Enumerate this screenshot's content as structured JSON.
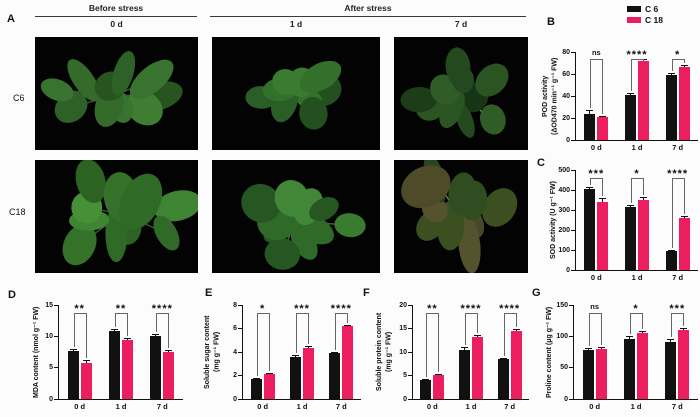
{
  "figure": {
    "panelA": {
      "label": "A",
      "before_stress": "Before stress",
      "after_stress": "After stress",
      "day_labels": [
        "0 d",
        "1 d",
        "7 d"
      ],
      "row_labels": [
        "C6",
        "C18"
      ]
    },
    "legend": [
      {
        "label": "C 6",
        "color": "#111111"
      },
      {
        "label": "C 18",
        "color": "#ED1E5F"
      }
    ],
    "colors": {
      "bar_black": "#111111",
      "bar_pink": "#ED1E5F",
      "photo_bg": "#030303"
    }
  },
  "chart_data": [
    {
      "panel": "B",
      "type": "bar",
      "ylabel": "POD activity\n(ΔOD470 min⁻¹ g⁻¹ FW)",
      "ylim": [
        0,
        80
      ],
      "yticks": [
        0,
        20,
        40,
        60,
        80
      ],
      "categories": [
        "0 d",
        "1 d",
        "7 d"
      ],
      "series": [
        {
          "name": "C 6",
          "color": "#111111",
          "values": [
            24,
            41,
            59
          ],
          "errors": [
            3,
            2,
            2
          ]
        },
        {
          "name": "C 18",
          "color": "#ED1E5F",
          "values": [
            21,
            72,
            66
          ],
          "errors": [
            1,
            2,
            2
          ]
        }
      ],
      "significance": [
        "ns",
        "****",
        "*"
      ]
    },
    {
      "panel": "C",
      "type": "bar",
      "ylabel": "SOD activity (U g⁻¹ FW)",
      "ylim": [
        0,
        500
      ],
      "yticks": [
        0,
        100,
        200,
        300,
        400,
        500
      ],
      "categories": [
        "0 d",
        "1 d",
        "7 d"
      ],
      "series": [
        {
          "name": "C 6",
          "color": "#111111",
          "values": [
            405,
            315,
            95
          ],
          "errors": [
            8,
            8,
            5
          ]
        },
        {
          "name": "C 18",
          "color": "#ED1E5F",
          "values": [
            340,
            350,
            260
          ],
          "errors": [
            22,
            15,
            10
          ]
        }
      ],
      "significance": [
        "***",
        "*",
        "****"
      ]
    },
    {
      "panel": "D",
      "type": "bar",
      "ylabel": "MDA content (nmol g⁻¹ FW)",
      "ylim": [
        0,
        15
      ],
      "yticks": [
        0,
        5,
        10,
        15
      ],
      "categories": [
        "0 d",
        "1 d",
        "7 d"
      ],
      "series": [
        {
          "name": "C 6",
          "color": "#111111",
          "values": [
            7.6,
            10.8,
            10.0
          ],
          "errors": [
            0.3,
            0.3,
            0.3
          ]
        },
        {
          "name": "C 18",
          "color": "#ED1E5F",
          "values": [
            5.8,
            9.4,
            7.5
          ],
          "errors": [
            0.4,
            0.3,
            0.3
          ]
        }
      ],
      "significance": [
        "**",
        "**",
        "****"
      ]
    },
    {
      "panel": "E",
      "type": "bar",
      "ylabel": "Soluble sugar content\n(mg g⁻¹ FW)",
      "ylim": [
        0,
        8
      ],
      "yticks": [
        0,
        2,
        4,
        6,
        8
      ],
      "categories": [
        "0 d",
        "1 d",
        "7 d"
      ],
      "series": [
        {
          "name": "C 6",
          "color": "#111111",
          "values": [
            1.7,
            3.6,
            3.9
          ],
          "errors": [
            0.1,
            0.15,
            0.12
          ]
        },
        {
          "name": "C 18",
          "color": "#ED1E5F",
          "values": [
            2.1,
            4.3,
            6.2
          ],
          "errors": [
            0.15,
            0.2,
            0.1
          ]
        }
      ],
      "significance": [
        "*",
        "***",
        "****"
      ]
    },
    {
      "panel": "F",
      "type": "bar",
      "ylabel": "Soluble protein content\n(mg g⁻¹ FW)",
      "ylim": [
        0,
        20
      ],
      "yticks": [
        0,
        5,
        10,
        15,
        20
      ],
      "categories": [
        "0 d",
        "1 d",
        "7 d"
      ],
      "series": [
        {
          "name": "C 6",
          "color": "#111111",
          "values": [
            4.0,
            10.5,
            8.5
          ],
          "errors": [
            0.25,
            0.5,
            0.3
          ]
        },
        {
          "name": "C 18",
          "color": "#ED1E5F",
          "values": [
            5.2,
            13.2,
            14.5
          ],
          "errors": [
            0.2,
            0.4,
            0.3
          ]
        }
      ],
      "significance": [
        "**",
        "****",
        "****"
      ]
    },
    {
      "panel": "G",
      "type": "bar",
      "ylabel": "Proline content (μg g⁻¹ FW)",
      "ylim": [
        0,
        150
      ],
      "yticks": [
        0,
        50,
        100,
        150
      ],
      "categories": [
        "0 d",
        "1 d",
        "7 d"
      ],
      "series": [
        {
          "name": "C 6",
          "color": "#111111",
          "values": [
            78,
            96,
            91
          ],
          "errors": [
            3,
            5,
            4
          ]
        },
        {
          "name": "C 18",
          "color": "#ED1E5F",
          "values": [
            80,
            106,
            110
          ],
          "errors": [
            3,
            3,
            3
          ]
        }
      ],
      "significance": [
        "ns",
        "*",
        "***"
      ]
    }
  ]
}
